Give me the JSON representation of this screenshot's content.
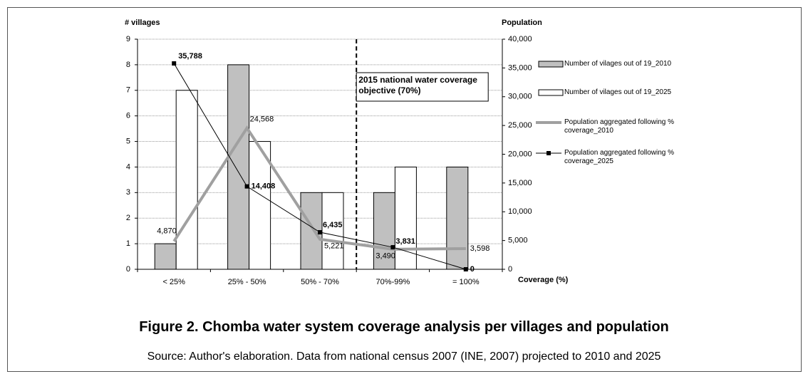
{
  "chart_data": {
    "type": "bar",
    "categories": [
      "< 25%",
      "25% - 50%",
      "50% - 70%",
      "70%-99%",
      "= 100%"
    ],
    "y_label": "# villages",
    "y2_label": "Population",
    "x_label": "Coverage (%)",
    "ylim": [
      0,
      9
    ],
    "yticks": [
      0,
      1,
      2,
      3,
      4,
      5,
      6,
      7,
      8,
      9
    ],
    "y2lim": [
      0,
      40000
    ],
    "y2ticks": [
      0,
      {
        "value": 5000,
        "label": "5,000"
      },
      {
        "value": 10000,
        "label": "10,000"
      },
      {
        "value": 15000,
        "label": "15,000"
      },
      {
        "value": 20000,
        "label": "20,000"
      },
      {
        "value": 25000,
        "label": "25,000"
      },
      {
        "value": 30000,
        "label": "30,000"
      },
      {
        "value": 35000,
        "label": "35,000"
      },
      {
        "value": 40000,
        "label": "40,000"
      }
    ],
    "grid": true,
    "legend": "right",
    "annotation": "2015 national water coverage objective (70%)",
    "series": [
      {
        "name": "Number of vilages out of 19_2010",
        "type": "bar",
        "color": "#c0c0c0",
        "values": [
          1,
          8,
          3,
          3,
          4
        ]
      },
      {
        "name": "Number of vilages out of 19_2025",
        "type": "bar",
        "color": "#ffffff",
        "values": [
          7,
          5,
          3,
          4,
          0
        ]
      },
      {
        "name": "Population aggregated following % coverage_2010",
        "type": "line",
        "axis": "y2",
        "color": "#a0a0a0",
        "values": [
          4870,
          24568,
          5221,
          3490,
          3598
        ],
        "value_labels": [
          "4,870",
          "24,568",
          "5,221",
          "3,490",
          "3,598"
        ]
      },
      {
        "name": "Population aggregated following % coverage_2025",
        "type": "line",
        "axis": "y2",
        "color": "#000000",
        "values": [
          35788,
          14408,
          6435,
          3831,
          0
        ],
        "value_labels": [
          "35,788",
          "14,408",
          "6,435",
          "3,831",
          "0"
        ]
      }
    ]
  },
  "caption": "Figure 2. Chomba water system coverage analysis per villages and population",
  "source": "Source: Author's elaboration. Data from national census 2007 (INE, 2007) projected to 2010 and 2025"
}
